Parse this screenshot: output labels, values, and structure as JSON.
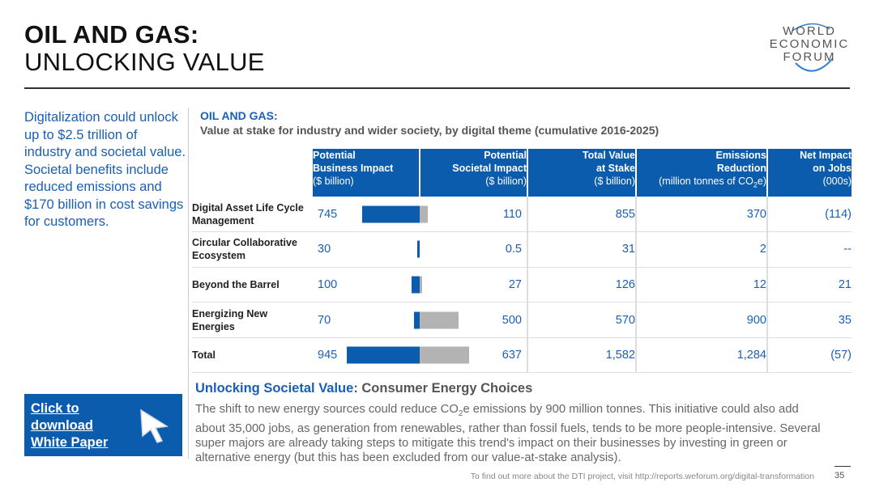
{
  "title": {
    "line1": "OIL AND GAS:",
    "line2": "UNLOCKING VALUE"
  },
  "logo": {
    "line1": "WORLD",
    "line2": "ECONOMIC",
    "line3": "FORUM"
  },
  "intro": "Digitalization could unlock up to $2.5 trillion of industry and societal value. Societal benefits include reduced emissions and $170 billion in cost savings for customers.",
  "chart_heading": {
    "title": "OIL AND GAS:",
    "subtitle": "Value at stake for industry and wider society, by digital theme (cumulative 2016-2025)"
  },
  "table": {
    "headers": [
      {
        "line1": "Potential",
        "line2": "Business Impact",
        "unit": "($ billion)"
      },
      {
        "line1": "Potential",
        "line2": "Societal Impact",
        "unit": "($ billion)"
      },
      {
        "line1": "Total Value",
        "line2": "at Stake",
        "unit": "($ billion)"
      },
      {
        "line1": "Emissions",
        "line2": "Reduction",
        "unit_pre": "(million tonnes of CO",
        "unit_sub": "2",
        "unit_post": "e)"
      },
      {
        "line1": "Net Impact",
        "line2": "on Jobs",
        "unit": "(000s)"
      }
    ],
    "rows": [
      {
        "label": "Digital Asset Life Cycle Management",
        "business": "745",
        "societal": "110",
        "total": "855",
        "emissions": "370",
        "jobs": "(114)"
      },
      {
        "label": "Circular Collaborative Ecosystem",
        "business": "30",
        "societal": "0.5",
        "total": "31",
        "emissions": "2",
        "jobs": "--"
      },
      {
        "label": "Beyond the Barrel",
        "business": "100",
        "societal": "27",
        "total": "126",
        "emissions": "12",
        "jobs": "21"
      },
      {
        "label": "Energizing New Energies",
        "business": "70",
        "societal": "500",
        "total": "570",
        "emissions": "900",
        "jobs": "35"
      },
      {
        "label": "Total",
        "business": "945",
        "societal": "637",
        "total": "1,582",
        "emissions": "1,284",
        "jobs": "(57)"
      }
    ]
  },
  "chart_data": {
    "type": "bar",
    "categories": [
      "Digital Asset Life Cycle Management",
      "Circular Collaborative Ecosystem",
      "Beyond the Barrel",
      "Energizing New Energies",
      "Total"
    ],
    "series": [
      {
        "name": "Potential Business Impact ($ billion)",
        "values": [
          745,
          30,
          100,
          70,
          945
        ],
        "color": "#0b5cad"
      },
      {
        "name": "Potential Societal Impact ($ billion)",
        "values": [
          110,
          0.5,
          27,
          500,
          637
        ],
        "color": "#b3b3b3"
      }
    ]
  },
  "section": {
    "heading_a": "Unlocking Societal Value",
    "heading_b": ": Consumer Energy Choices",
    "body_pre": "The shift to new energy sources could reduce CO",
    "body_sub": "2",
    "body_post": "e emissions by 900 million tonnes. This initiative could also add about 35,000 jobs, as generation from renewables, rather than fossil fuels, tends to be more people-intensive. Several super majors are already taking steps to mitigate this trend's impact on their businesses by investing in green or alternative energy (but this has been excluded from our value-at-stake analysis)."
  },
  "download": {
    "line1": "Click to",
    "line2": "download",
    "line3": "White Paper"
  },
  "footer": "To find out more about the DTI project, visit http://reports.weforum.org/digital-transformation",
  "page_number": "35",
  "colors": {
    "blue": "#0b5cad",
    "gray_bar": "#b3b3b3",
    "text_blue": "#1a5fb4"
  }
}
